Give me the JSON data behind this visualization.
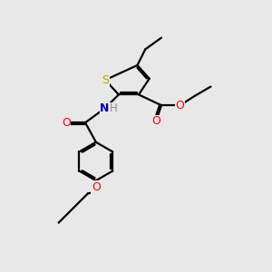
{
  "bg_color": "#e8e8e8",
  "atom_colors": {
    "S": "#b8a000",
    "O": "#ff0000",
    "N": "#0000cc",
    "H": "#909090",
    "C": "#000000"
  },
  "bond_color": "#000000",
  "bond_width": 1.6,
  "figsize": [
    3.0,
    3.0
  ],
  "dpi": 100
}
